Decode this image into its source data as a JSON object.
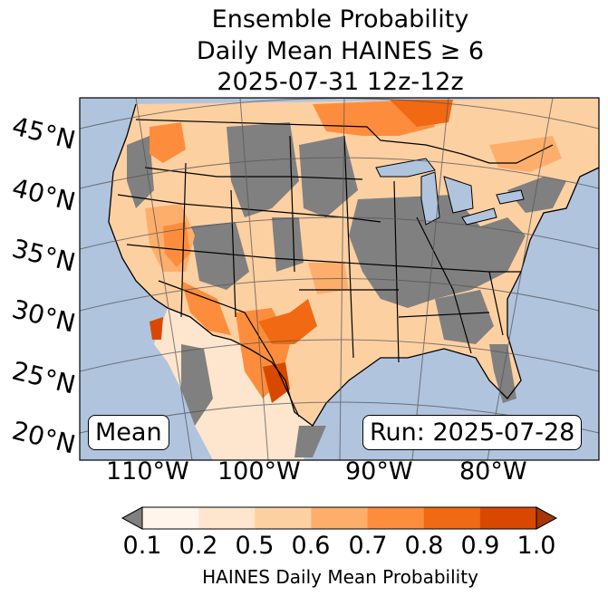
{
  "title": {
    "line1": "Ensemble Probability",
    "line2": "Daily Mean HAINES ≥ 6",
    "line3": "2025-07-31 12z-12z"
  },
  "map": {
    "latitude_labels": [
      "45°N",
      "40°N",
      "35°N",
      "30°N",
      "25°N",
      "20°N"
    ],
    "longitude_labels": [
      "110°W",
      "100°W",
      "90°W",
      "80°W"
    ],
    "stat_label": "Mean",
    "run_label": "Run: 2025-07-28",
    "colors": {
      "ocean": "#b0c4de",
      "below_min": "#808080",
      "bins": [
        "#fff5eb",
        "#fee6ce",
        "#fdd0a2",
        "#fdae6b",
        "#fd8d3c",
        "#f16913",
        "#d94801",
        "#a63603"
      ]
    }
  },
  "colorbar": {
    "ticks": [
      "0.1",
      "0.2",
      "0.5",
      "0.6",
      "0.7",
      "0.8",
      "0.9",
      "1.0"
    ],
    "label": "HAINES Daily Mean Probability"
  }
}
